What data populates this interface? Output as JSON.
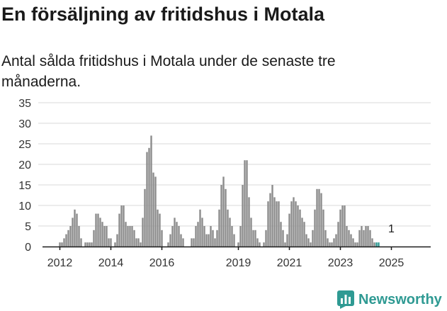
{
  "title": "En försäljning av fritidshus i Motala",
  "subtitle": "Antal sålda fritidshus i Motala under de senaste tre månaderna.",
  "brand": {
    "name": "Newsworthy",
    "icon": "newsworthy-logo-icon",
    "color": "#2f9a93"
  },
  "chart_data": {
    "type": "bar",
    "title": "",
    "xlabel": "",
    "ylabel": "",
    "ylim": [
      0,
      35
    ],
    "yticks": [
      0,
      5,
      10,
      15,
      20,
      25,
      30,
      35
    ],
    "xticks": [
      "2012",
      "2014",
      "2016",
      "2019",
      "2021",
      "2023",
      "2025"
    ],
    "xticks_month_index": [
      0,
      24,
      48,
      84,
      108,
      132,
      156
    ],
    "grid": "horizontal",
    "legend": "none",
    "bar_color": "#8c8c8c",
    "highlight_color": "#2f9a93",
    "annotation": {
      "text": "1",
      "month_index": 156
    },
    "start": "2011-11",
    "values": [
      1,
      1,
      2,
      3,
      4,
      5,
      7,
      9,
      8,
      5,
      2,
      0,
      1,
      1,
      1,
      1,
      4,
      8,
      8,
      7,
      6,
      5,
      5,
      2,
      2,
      0,
      1,
      3,
      8,
      10,
      10,
      6,
      5,
      5,
      5,
      4,
      2,
      2,
      1,
      7,
      14,
      23,
      24,
      27,
      18,
      17,
      9,
      8,
      4,
      0,
      0,
      1,
      3,
      5,
      7,
      6,
      5,
      3,
      2,
      0,
      0,
      0,
      2,
      2,
      5,
      6,
      9,
      7,
      5,
      3,
      3,
      5,
      4,
      2,
      4,
      9,
      15,
      17,
      14,
      9,
      7,
      5,
      3,
      0,
      1,
      5,
      15,
      21,
      21,
      12,
      7,
      4,
      4,
      2,
      1,
      0,
      1,
      4,
      11,
      13,
      15,
      12,
      11,
      11,
      6,
      4,
      1,
      3,
      8,
      11,
      12,
      11,
      10,
      9,
      7,
      6,
      3,
      2,
      1,
      4,
      9,
      14,
      14,
      13,
      9,
      4,
      2,
      1,
      1,
      2,
      3,
      6,
      9,
      10,
      10,
      5,
      4,
      3,
      2,
      1,
      1,
      4,
      5,
      4,
      5,
      5,
      4,
      2,
      1,
      1,
      1
    ]
  }
}
